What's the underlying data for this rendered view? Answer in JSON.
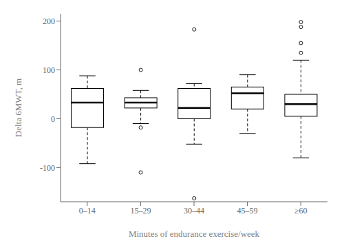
{
  "chart_data": {
    "type": "box",
    "categories": [
      "0–14",
      "15–29",
      "30–44",
      "45–59",
      "≥60"
    ],
    "xlabel": "Minutes of endurance exercise/week",
    "ylabel": "Delta 6MWT, m",
    "ylim": [
      -170,
      215
    ],
    "yticks": [
      -100,
      0,
      100,
      200
    ],
    "color": "#000000",
    "boxes": [
      {
        "q1": -18,
        "median": 33,
        "q3": 62,
        "whislo": -92,
        "whishi": 88,
        "fliers": []
      },
      {
        "q1": 22,
        "median": 33,
        "q3": 43,
        "whislo": -10,
        "whishi": 58,
        "fliers": [
          -110,
          -18,
          100
        ]
      },
      {
        "q1": 0,
        "median": 22,
        "q3": 62,
        "whislo": -52,
        "whishi": 72,
        "fliers": [
          183,
          -163
        ]
      },
      {
        "q1": 20,
        "median": 52,
        "q3": 65,
        "whislo": -30,
        "whishi": 90,
        "fliers": []
      },
      {
        "q1": 5,
        "median": 30,
        "q3": 50,
        "whislo": -80,
        "whishi": 120,
        "fliers": [
          135,
          155,
          188,
          198
        ]
      }
    ]
  }
}
